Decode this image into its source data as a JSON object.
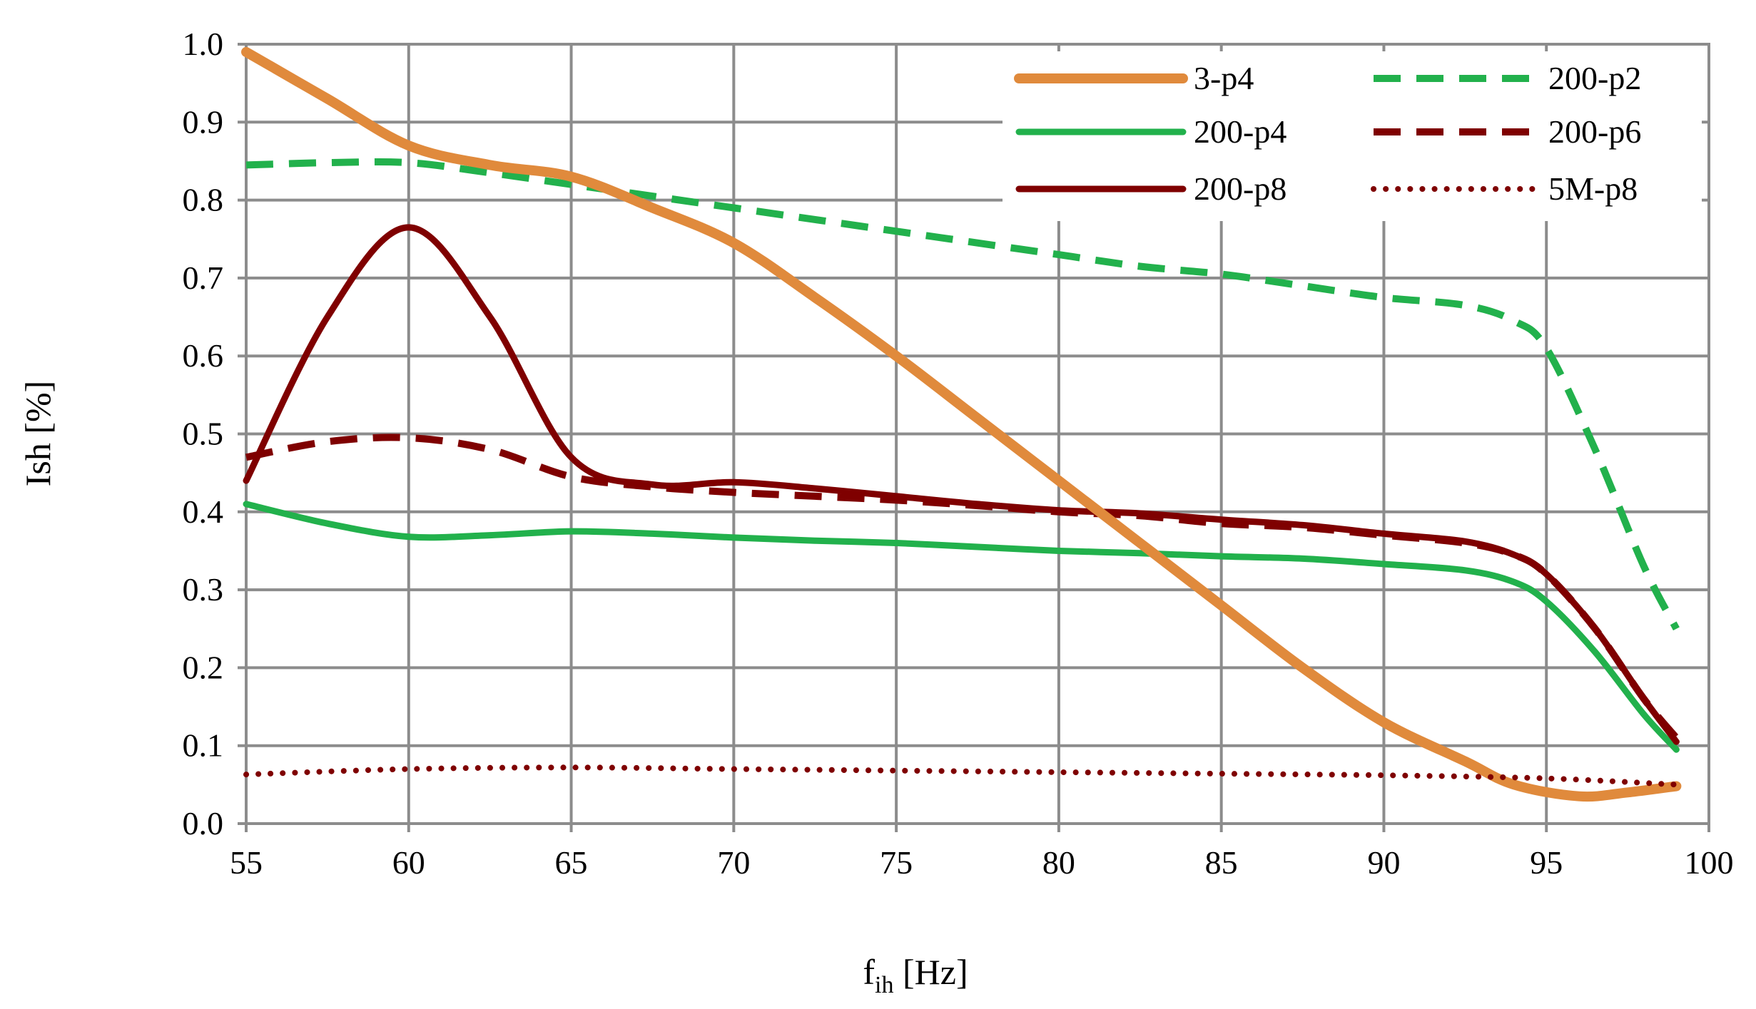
{
  "chart_data": {
    "type": "line",
    "title": "",
    "xlabel_main": "f",
    "xlabel_sub": "ih",
    "xlabel_unit": " [Hz]",
    "ylabel": "Ish [%]",
    "xlim": [
      55,
      100
    ],
    "ylim": [
      0,
      1
    ],
    "x_ticks": [
      55,
      60,
      65,
      70,
      75,
      80,
      85,
      90,
      95,
      100
    ],
    "y_ticks": [
      "0.0",
      "0.1",
      "0.2",
      "0.3",
      "0.4",
      "0.5",
      "0.6",
      "0.7",
      "0.8",
      "0.9",
      "1.0"
    ],
    "grid": true,
    "legend_position": "top-right",
    "series": [
      {
        "name": "3-p4",
        "color": "#E08A3C",
        "style": "solid",
        "weight": "thick",
        "x": [
          55,
          57.5,
          60,
          62.5,
          65,
          67.5,
          70,
          72.5,
          75,
          77.5,
          80,
          82.5,
          85,
          87.5,
          90,
          92.5,
          94,
          96,
          97.5,
          99
        ],
        "y": [
          0.99,
          0.93,
          0.87,
          0.845,
          0.83,
          0.79,
          0.745,
          0.675,
          0.6,
          0.52,
          0.44,
          0.36,
          0.28,
          0.2,
          0.13,
          0.08,
          0.05,
          0.035,
          0.04,
          0.048
        ]
      },
      {
        "name": "200-p2",
        "color": "#22B14C",
        "style": "dashed",
        "x": [
          55,
          57.5,
          60,
          62.5,
          65,
          67.5,
          70,
          72.5,
          75,
          77.5,
          80,
          82.5,
          85,
          87.5,
          90,
          92.5,
          94,
          95,
          96.5,
          98,
          99
        ],
        "y": [
          0.845,
          0.848,
          0.848,
          0.835,
          0.82,
          0.805,
          0.79,
          0.775,
          0.76,
          0.745,
          0.73,
          0.715,
          0.705,
          0.69,
          0.675,
          0.665,
          0.645,
          0.61,
          0.48,
          0.33,
          0.25
        ]
      },
      {
        "name": "200-p4",
        "color": "#22B14C",
        "style": "solid",
        "x": [
          55,
          57.5,
          60,
          62.5,
          65,
          67.5,
          70,
          72.5,
          75,
          77.5,
          80,
          82.5,
          85,
          87.5,
          90,
          92.5,
          94,
          95,
          96.5,
          98,
          99
        ],
        "y": [
          0.41,
          0.385,
          0.368,
          0.37,
          0.375,
          0.372,
          0.367,
          0.363,
          0.36,
          0.355,
          0.35,
          0.347,
          0.343,
          0.34,
          0.333,
          0.325,
          0.31,
          0.285,
          0.22,
          0.14,
          0.095
        ]
      },
      {
        "name": "200-p6",
        "color": "#7F0000",
        "style": "dashed",
        "x": [
          55,
          57.5,
          60,
          62.5,
          65,
          67.5,
          70,
          72.5,
          75,
          77.5,
          80,
          82.5,
          85,
          87.5,
          90,
          92.5,
          94,
          95,
          96.5,
          98,
          99
        ],
        "y": [
          0.47,
          0.49,
          0.495,
          0.48,
          0.445,
          0.432,
          0.425,
          0.42,
          0.415,
          0.408,
          0.4,
          0.395,
          0.385,
          0.38,
          0.37,
          0.36,
          0.345,
          0.32,
          0.25,
          0.16,
          0.11
        ]
      },
      {
        "name": "200-p8",
        "color": "#7F0000",
        "style": "solid",
        "x": [
          55,
          57.5,
          60,
          62.5,
          65,
          67.5,
          70,
          72.5,
          75,
          77.5,
          80,
          82.5,
          85,
          87.5,
          90,
          92.5,
          94,
          95,
          96.5,
          98,
          99
        ],
        "y": [
          0.44,
          0.65,
          0.765,
          0.65,
          0.47,
          0.435,
          0.438,
          0.43,
          0.42,
          0.41,
          0.402,
          0.398,
          0.39,
          0.383,
          0.372,
          0.362,
          0.345,
          0.32,
          0.25,
          0.16,
          0.105
        ]
      },
      {
        "name": "5M-p8",
        "color": "#7F0000",
        "style": "dotted",
        "x": [
          55,
          60,
          65,
          70,
          75,
          80,
          85,
          90,
          95,
          99
        ],
        "y": [
          0.063,
          0.07,
          0.072,
          0.07,
          0.068,
          0.066,
          0.064,
          0.062,
          0.058,
          0.05
        ]
      }
    ]
  }
}
